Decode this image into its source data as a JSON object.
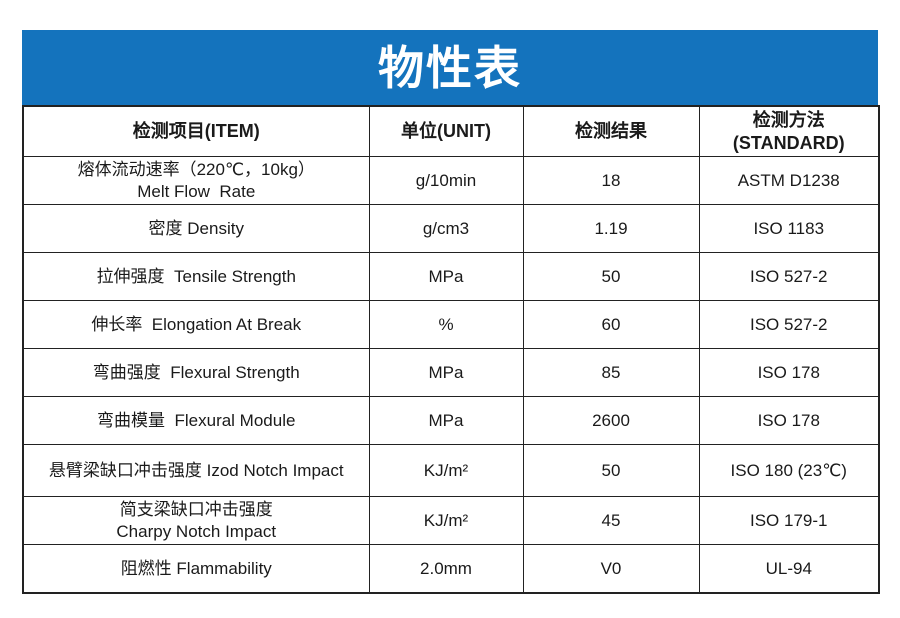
{
  "banner": {
    "title": "物性表",
    "background": "#1473bd",
    "text_color": "#ffffff"
  },
  "table": {
    "border_color": "#222222",
    "headers": {
      "item": "检测项目(ITEM)",
      "unit": "单位(UNIT)",
      "result": "检测结果",
      "standard": "检测方法\n(STANDARD)"
    },
    "rows": [
      {
        "item": "熔体流动速率（220℃，10kg）\nMelt Flow  Rate",
        "unit": "g/10min",
        "result": "18",
        "standard": "ASTM D1238"
      },
      {
        "item": "密度 Density",
        "unit": "g/cm3",
        "result": "1.19",
        "standard": "ISO 1183"
      },
      {
        "item": "拉伸强度  Tensile Strength",
        "unit": "MPa",
        "result": "50",
        "standard": "ISO 527-2"
      },
      {
        "item": "伸长率  Elongation At Break",
        "unit": "%",
        "result": "60",
        "standard": "ISO 527-2"
      },
      {
        "item": "弯曲强度  Flexural Strength",
        "unit": "MPa",
        "result": "85",
        "standard": "ISO 178"
      },
      {
        "item": "弯曲模量  Flexural Module",
        "unit": "MPa",
        "result": "2600",
        "standard": "ISO 178"
      },
      {
        "item": "悬臂梁缺口冲击强度 Izod Notch Impact",
        "unit": "KJ/m²",
        "result": "50",
        "standard": "ISO 180 (23℃)"
      },
      {
        "item": "简支梁缺口冲击强度\nCharpy Notch Impact",
        "unit": "KJ/m²",
        "result": "45",
        "standard": "ISO 179-1"
      },
      {
        "item": "阻燃性 Flammability",
        "unit": "2.0mm",
        "result": "V0",
        "standard": "UL-94"
      }
    ]
  }
}
